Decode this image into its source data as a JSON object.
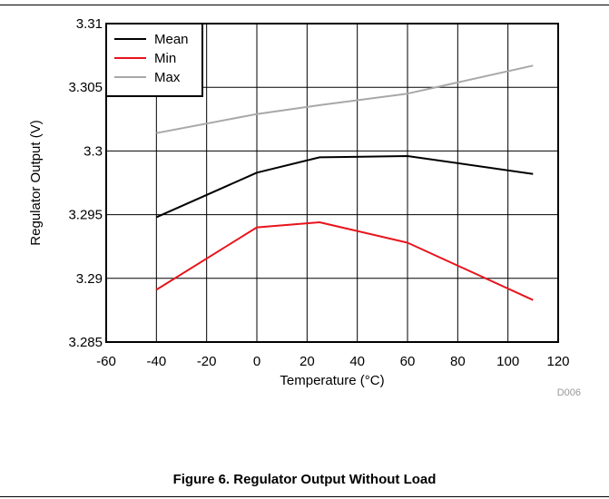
{
  "figure": {
    "caption": "Figure 6. Regulator Output Without Load",
    "id_label": "D006"
  },
  "chart_data": {
    "type": "line",
    "xlabel": "Temperature (°C)",
    "ylabel": "Regulator Output (V)",
    "xlim": [
      -60,
      120
    ],
    "ylim": [
      3.285,
      3.31
    ],
    "x_ticks": [
      -60,
      -40,
      -20,
      0,
      20,
      40,
      60,
      80,
      100,
      120
    ],
    "x_tick_labels": [
      "-60",
      "-40",
      "-20",
      "0",
      "20",
      "40",
      "60",
      "80",
      "100",
      "120"
    ],
    "y_ticks": [
      3.285,
      3.29,
      3.295,
      3.3,
      3.305,
      3.31
    ],
    "y_tick_labels": [
      "3.285",
      "3.29",
      "3.295",
      "3.3",
      "3.305",
      "3.31"
    ],
    "grid": true,
    "legend_position": "top-left",
    "x": [
      -40,
      0,
      25,
      60,
      110
    ],
    "series": [
      {
        "name": "Mean",
        "color": "#000000",
        "values": [
          3.2948,
          3.2983,
          3.2995,
          3.2996,
          3.2982
        ]
      },
      {
        "name": "Min",
        "color": "#e8141c",
        "values": [
          3.2891,
          3.294,
          3.2944,
          3.2928,
          3.2883
        ]
      },
      {
        "name": "Max",
        "color": "#a8a8a8",
        "values": [
          3.3014,
          3.3029,
          3.3036,
          3.3045,
          3.3067
        ]
      }
    ]
  }
}
